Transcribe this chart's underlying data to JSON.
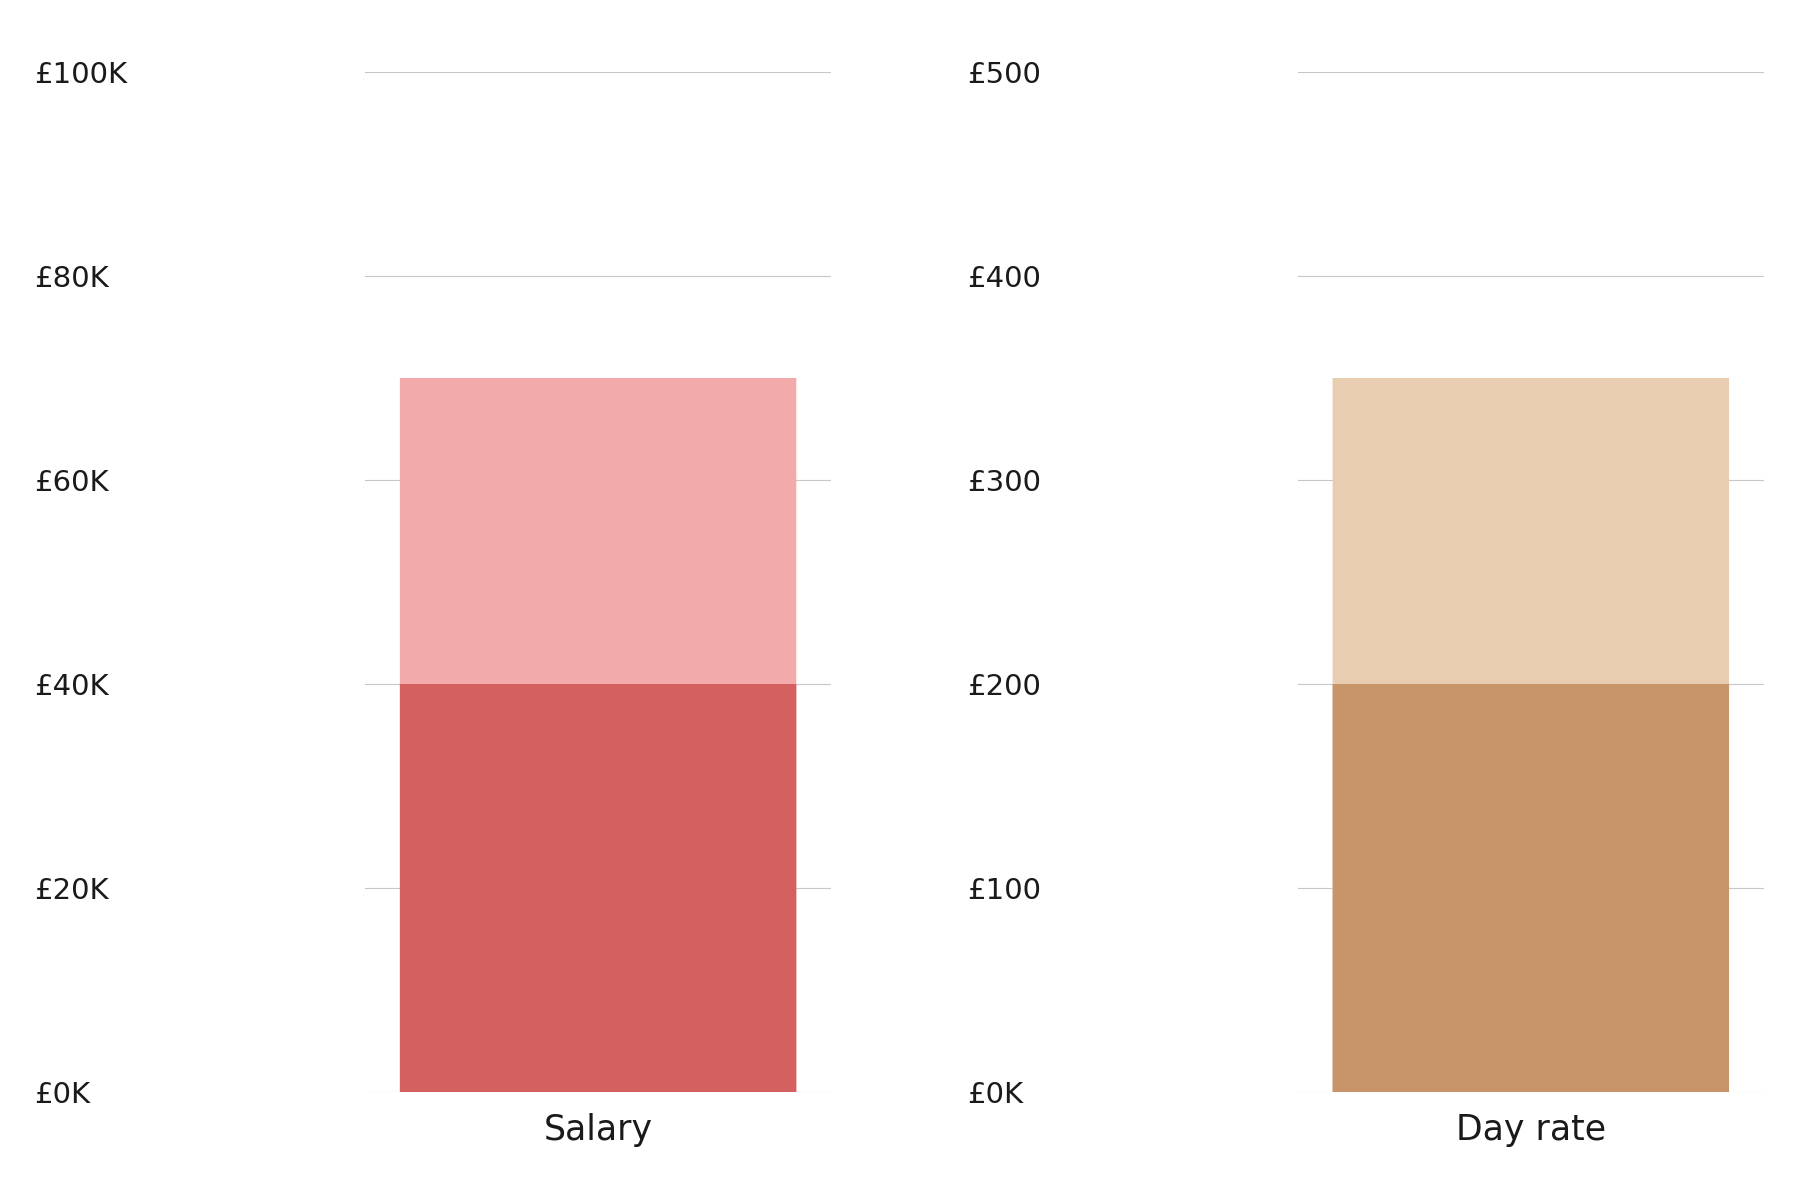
{
  "salary_min": 40000,
  "salary_max": 70000,
  "salary_ylim": [
    0,
    100000
  ],
  "salary_yticks": [
    0,
    20000,
    40000,
    60000,
    80000,
    100000
  ],
  "salary_yticklabels": [
    "£0K",
    "£20K",
    "£40K",
    "£60K",
    "£80K",
    "£100K"
  ],
  "salary_xlabel": "Salary",
  "salary_bar_color_light": "#f2aaaa",
  "salary_bar_color_dark": "#d46060",
  "dayrate_min": 200,
  "dayrate_max": 350,
  "dayrate_ylim": [
    0,
    500
  ],
  "dayrate_yticks": [
    0,
    100,
    200,
    300,
    400,
    500
  ],
  "dayrate_yticklabels": [
    "£0K",
    "£100",
    "£200",
    "£300",
    "£400",
    "£500"
  ],
  "dayrate_xlabel": "Day rate",
  "dayrate_bar_color_light": "#e8cdb0",
  "dayrate_bar_color_dark": "#c8956a",
  "background_color": "#ffffff",
  "grid_color": "#c8c8c8",
  "tick_label_fontsize": 21,
  "xlabel_fontsize": 25,
  "text_color": "#1a1a1a"
}
